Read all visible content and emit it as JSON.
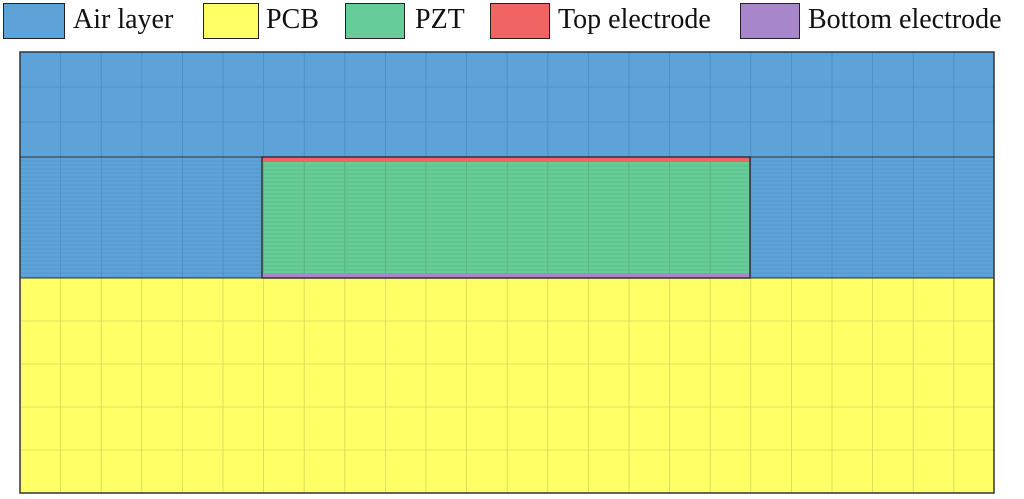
{
  "legend": [
    {
      "label": "Air layer",
      "color": "#5DA3D7"
    },
    {
      "label": "PCB",
      "color": "#FFFF66"
    },
    {
      "label": "PZT",
      "color": "#66CC99"
    },
    {
      "label": "Top electrode",
      "color": "#F06464"
    },
    {
      "label": "Bottom electrode",
      "color": "#A886CC"
    }
  ],
  "colors": {
    "air": "#5DA3D7",
    "pcb": "#FFFF66",
    "pzt": "#66CC99",
    "top_electrode": "#F06464",
    "bottom_electrode": "#A886CC",
    "mesh_line_air": "#4A8CC0",
    "mesh_line_pcb": "#D6D65A",
    "mesh_line_pzt": "#52B07F",
    "outline": "#333333"
  }
}
